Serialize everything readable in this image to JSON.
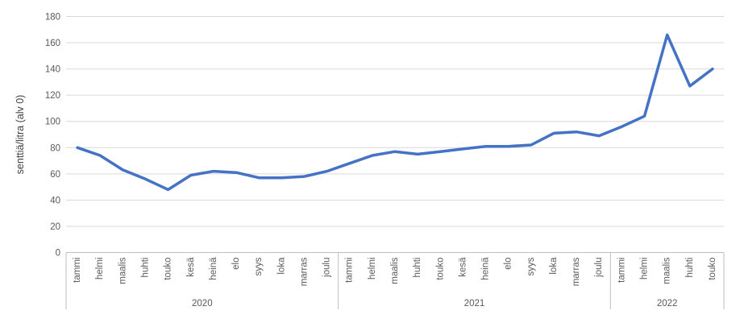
{
  "chart_data": {
    "type": "line",
    "title": "",
    "ylabel": "senttiä/litra (alv 0)",
    "xlabel": "",
    "ylim": [
      0,
      180
    ],
    "ytick_step": 20,
    "ytick_labels": [
      "0",
      "20",
      "40",
      "60",
      "80",
      "100",
      "120",
      "140",
      "160",
      "180"
    ],
    "grid": "horizontal",
    "legend_position": "none",
    "categories": [
      "tammi",
      "helmi",
      "maalis",
      "huhti",
      "touko",
      "kesä",
      "heinä",
      "elo",
      "syys",
      "loka",
      "marras",
      "joulu",
      "tammi",
      "helmi",
      "maalis",
      "huhti",
      "touko",
      "kesä",
      "heinä",
      "elo",
      "syys",
      "loka",
      "marras",
      "joulu",
      "tammi",
      "helmi",
      "maalis",
      "huhti",
      "touko"
    ],
    "year_groups": [
      {
        "label": "2020",
        "months": 12
      },
      {
        "label": "2021",
        "months": 12
      },
      {
        "label": "2022",
        "months": 5
      }
    ],
    "series": [
      {
        "name": "senttiä/litra (alv 0)",
        "values": [
          80,
          74,
          63,
          56,
          48,
          59,
          62,
          61,
          57,
          57,
          58,
          62,
          68,
          74,
          77,
          75,
          77,
          79,
          81,
          81,
          82,
          91,
          92,
          89,
          96,
          104,
          166,
          127,
          140
        ]
      }
    ]
  },
  "style_colors": {
    "line": "#4472C4",
    "grid": "#d9d9d9",
    "axis": "#bfbfbf",
    "text": "#595959"
  }
}
